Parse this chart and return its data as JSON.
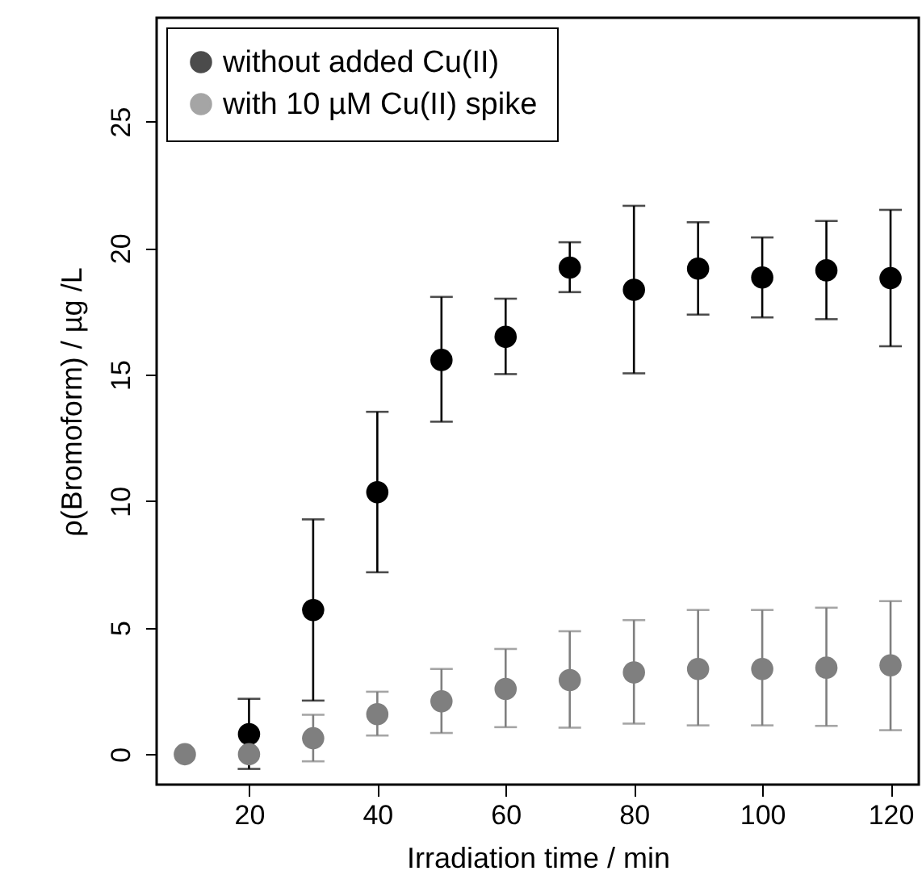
{
  "chart_data": {
    "type": "scatter",
    "xlabel": "Irradiation time  /  min",
    "ylabel": "ρ(Bromoform)  / µg /L",
    "xlim": [
      5.6,
      124.4
    ],
    "ylim": [
      -1.2,
      29.1
    ],
    "xticks": [
      20,
      40,
      60,
      80,
      100,
      120
    ],
    "yticks": [
      0,
      5,
      10,
      15,
      20,
      25
    ],
    "grid": false,
    "legend": "top left",
    "marker": "circle",
    "series": [
      {
        "name": "without added Cu(II)",
        "color": "#000000",
        "x": [
          20,
          30,
          40,
          50,
          60,
          70,
          80,
          90,
          100,
          110,
          120
        ],
        "values": [
          0.79,
          5.7,
          10.35,
          15.58,
          16.49,
          19.23,
          18.35,
          19.19,
          18.84,
          19.12,
          18.81
        ],
        "errors": [
          [
            -0.58,
            2.19
          ],
          [
            2.12,
            9.28
          ],
          [
            7.19,
            13.53
          ],
          [
            13.14,
            18.07
          ],
          [
            15.02,
            18.0
          ],
          [
            18.26,
            20.23
          ],
          [
            15.05,
            21.67
          ],
          [
            17.37,
            21.02
          ],
          [
            17.26,
            20.42
          ],
          [
            17.19,
            21.07
          ],
          [
            16.12,
            21.51
          ]
        ]
      },
      {
        "name": "with 10 µM Cu(II) spike",
        "color": "#7f7f7f",
        "x": [
          10,
          20,
          30,
          40,
          50,
          60,
          70,
          80,
          90,
          100,
          110,
          120
        ],
        "values": [
          0,
          0,
          0.63,
          1.58,
          2.09,
          2.58,
          2.93,
          3.23,
          3.37,
          3.37,
          3.42,
          3.51
        ],
        "errors": [
          null,
          null,
          [
            -0.28,
            1.56
          ],
          [
            0.74,
            2.47
          ],
          [
            0.84,
            3.37
          ],
          [
            1.07,
            4.16
          ],
          [
            1.05,
            4.86
          ],
          [
            1.21,
            5.3
          ],
          [
            1.14,
            5.7
          ],
          [
            1.14,
            5.7
          ],
          [
            1.12,
            5.79
          ],
          [
            0.95,
            6.05
          ]
        ]
      }
    ]
  }
}
